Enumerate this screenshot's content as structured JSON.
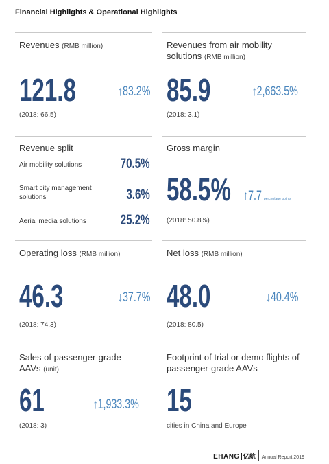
{
  "header": {
    "title": "Financial Highlights & Operational Highlights"
  },
  "cells": [
    {
      "label": "Revenues",
      "unit": "(RMB million)",
      "value": "121.8",
      "change": "↑83.2%",
      "comparison": "(2018: 66.5)"
    },
    {
      "label": "Revenues from air mobility solutions",
      "unit": "(RMB million)",
      "value": "85.9",
      "change": "↑2,663.5%",
      "comparison": "(2018: 3.1)"
    },
    {
      "label": "Revenue split",
      "items": [
        {
          "label": "Air mobility solutions",
          "value": "70.5%"
        },
        {
          "label": "Smart city management solutions",
          "value": "3.6%"
        },
        {
          "label": "Aerial media solutions",
          "value": "25.2%"
        }
      ]
    },
    {
      "label": "Gross margin",
      "value": "58.5%",
      "change": "↑7.7",
      "change_note": "percentage points",
      "comparison": "(2018: 50.8%)"
    },
    {
      "label": "Operating loss",
      "unit": "(RMB million)",
      "value": "46.3",
      "change": "↓37.7%",
      "comparison": "(2018: 74.3)"
    },
    {
      "label": "Net loss",
      "unit": "(RMB million)",
      "value": "48.0",
      "change": "↓40.4%",
      "comparison": "(2018: 80.5)"
    },
    {
      "label": "Sales of passenger-grade AAVs",
      "unit": "(unit)",
      "value": "61",
      "change": "↑1,933.3%",
      "comparison": "(2018: 3)"
    },
    {
      "label": "Footprint of trial or demo flights of passenger-grade AAVs",
      "value": "15",
      "note": "cities in China and Europe"
    }
  ],
  "footer": {
    "logo": "EHANG",
    "logo_cn": "亿航",
    "report": "Annual Report 2019"
  }
}
